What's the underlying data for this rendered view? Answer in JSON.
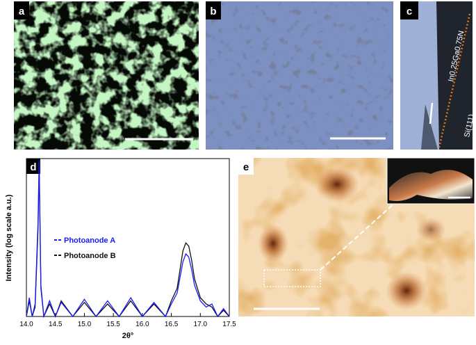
{
  "panels": {
    "a": {
      "label": "a"
    },
    "b": {
      "label": "b"
    },
    "c": {
      "label": "c",
      "layer": "In0.25Ga0.75N",
      "substrate": "Si(111)"
    },
    "e": {
      "label": "e"
    }
  },
  "chart_data": {
    "type": "line",
    "panel_label": "d",
    "x_label": "2θ°",
    "y_label": "Intensity (log scale a.u.)",
    "x": [
      14.0,
      14.05,
      14.1,
      14.15,
      14.2,
      14.22,
      14.25,
      14.3,
      14.4,
      14.5,
      14.6,
      14.8,
      15.0,
      15.2,
      15.4,
      15.6,
      15.8,
      16.0,
      16.2,
      16.4,
      16.5,
      16.6,
      16.65,
      16.7,
      16.75,
      16.8,
      16.85,
      16.9,
      16.95,
      17.0,
      17.1,
      17.2,
      17.3,
      17.4,
      17.5
    ],
    "series": [
      {
        "name": "Photoanode B",
        "color": "#111111",
        "values": [
          0,
          10,
          0,
          6,
          55,
          95,
          18,
          0,
          8,
          0,
          10,
          0,
          9,
          0,
          8,
          0,
          10,
          0,
          8,
          0,
          10,
          18,
          30,
          42,
          47,
          45,
          36,
          24,
          18,
          12,
          8,
          6,
          0,
          4,
          0
        ]
      },
      {
        "name": "Photoanode A",
        "color": "#1a1aff",
        "values": [
          0,
          12,
          0,
          8,
          60,
          100,
          20,
          0,
          10,
          0,
          9,
          0,
          11,
          0,
          10,
          0,
          12,
          0,
          9,
          0,
          8,
          15,
          25,
          35,
          40,
          38,
          30,
          20,
          15,
          10,
          6,
          8,
          0,
          5,
          0
        ]
      }
    ],
    "xlim": [
      14.0,
      17.5
    ],
    "xticks": [
      {
        "value": 14.0,
        "label": "14.0"
      },
      14.5,
      {
        "value": 15.0,
        "label": "15.0"
      },
      15.5,
      {
        "value": 16.0,
        "label": "16.0"
      },
      16.5,
      {
        "value": 17.0,
        "label": "17.0"
      },
      17.5
    ],
    "ylim": [
      0,
      100
    ]
  }
}
